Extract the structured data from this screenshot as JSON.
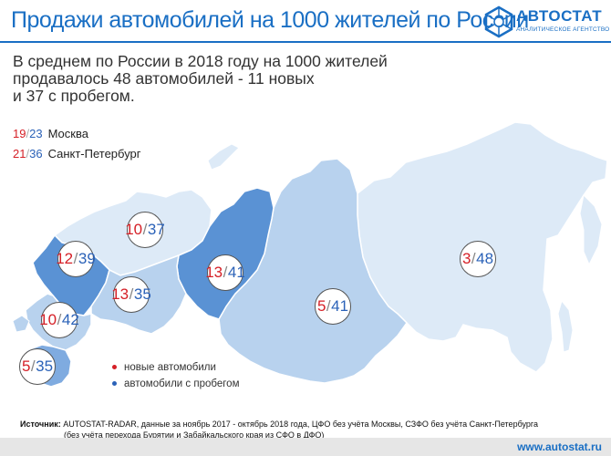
{
  "header": {
    "title": "Продажи автомобилей на 1000 жителей по России",
    "logo_name": "АВТОСТАТ",
    "logo_subtitle": "АНАЛИТИЧЕСКОЕ АГЕНТСТВО"
  },
  "intro": {
    "lines": [
      "В среднем по России в 2018 году на 1000 жителей",
      "продавалось 48 автомобилей - 11 новых",
      "и 37 с пробегом."
    ]
  },
  "cities": [
    {
      "new": "19",
      "sep": "/",
      "used": "23",
      "label": "Москва"
    },
    {
      "new": "21",
      "sep": "/",
      "used": "36",
      "label": "Санкт-Петербург"
    }
  ],
  "regions": [
    {
      "id": "north-west",
      "new": "10",
      "sep": "/",
      "used": "37",
      "fill": "#ddeaf7"
    },
    {
      "id": "central",
      "new": "12",
      "sep": "/",
      "used": "39",
      "fill": "#5a92d4"
    },
    {
      "id": "volga",
      "new": "13",
      "sep": "/",
      "used": "35",
      "fill": "#b8d2ee"
    },
    {
      "id": "urals",
      "new": "13",
      "sep": "/",
      "used": "41",
      "fill": "#5a92d4"
    },
    {
      "id": "south",
      "new": "10",
      "sep": "/",
      "used": "42",
      "fill": "#b8d2ee"
    },
    {
      "id": "north-caucasus",
      "new": "5",
      "sep": "/",
      "used": "35",
      "fill": "#7fabe0"
    },
    {
      "id": "siberia",
      "new": "5",
      "sep": "/",
      "used": "41",
      "fill": "#b8d2ee"
    },
    {
      "id": "far-east",
      "new": "3",
      "sep": "/",
      "used": "48",
      "fill": "#ddeaf7"
    }
  ],
  "legend": {
    "new_label": "новые автомобили",
    "used_label": "автомобили с пробегом",
    "new_color": "#d52027",
    "used_color": "#2b62b8"
  },
  "footer": {
    "source_label": "Источник:",
    "source_text": "AUTOSTAT-RADAR, данные за ноябрь 2017 - октябрь 2018 года, ЦФО без учёта Москвы, СЗФО без учёта Санкт-Петербурга",
    "source_line2": "(без учёта перехода Бурятии и Забайкальского края из СФО в ДФО)",
    "website": "www.autostat.ru"
  },
  "colors": {
    "title_blue": "#1a6fc4",
    "region_lightest": "#ddeaf7",
    "region_light": "#b8d2ee",
    "region_medium": "#7fabe0",
    "region_dark": "#5a92d4"
  }
}
